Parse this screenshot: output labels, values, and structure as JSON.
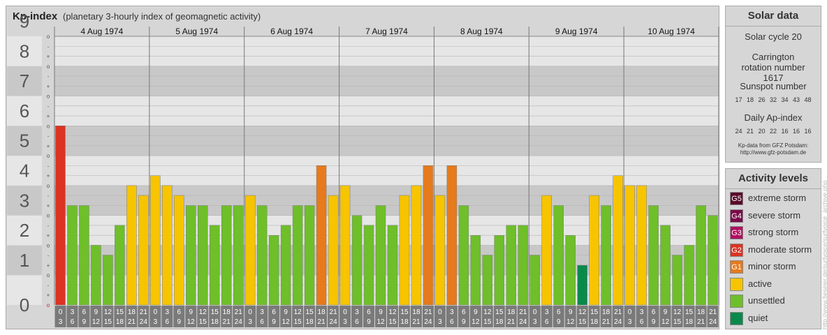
{
  "title": {
    "main": "Kp-index",
    "sub": "(planetary 3-hourly index of geomagnetic activity)"
  },
  "chart_data": {
    "type": "bar",
    "days": [
      "4 Aug 1974",
      "5 Aug 1974",
      "6 Aug 1974",
      "7 Aug 1974",
      "8 Aug 1974",
      "9 Aug 1974",
      "10 Aug 1974"
    ],
    "interval_labels": [
      [
        "0",
        "3"
      ],
      [
        "3",
        "6"
      ],
      [
        "6",
        "9"
      ],
      [
        "9",
        "12"
      ],
      [
        "12",
        "15"
      ],
      [
        "15",
        "18"
      ],
      [
        "18",
        "21"
      ],
      [
        "21",
        "24"
      ]
    ],
    "y_tick_labels": [
      "0",
      "1",
      "2",
      "3",
      "4",
      "5",
      "6",
      "7",
      "8",
      "9"
    ],
    "y_sub_labels": [
      "o",
      "+",
      "-"
    ],
    "ylim": [
      0,
      9
    ],
    "values": [
      [
        6.0,
        3.33,
        3.33,
        2.0,
        1.67,
        2.67,
        4.0,
        3.67
      ],
      [
        4.33,
        4.0,
        3.67,
        3.33,
        3.33,
        2.67,
        3.33,
        3.33
      ],
      [
        3.67,
        3.33,
        2.33,
        2.67,
        3.33,
        3.33,
        4.67,
        3.67
      ],
      [
        4.0,
        3.0,
        2.67,
        3.33,
        2.67,
        3.67,
        4.0,
        4.67
      ],
      [
        3.67,
        4.67,
        3.33,
        2.33,
        1.67,
        2.33,
        2.67,
        2.67
      ],
      [
        1.67,
        3.67,
        3.33,
        2.33,
        1.33,
        3.67,
        3.33,
        4.33
      ],
      [
        4.0,
        4.0,
        3.33,
        2.67,
        1.67,
        2.0,
        3.33,
        3.0
      ]
    ],
    "colors": {
      "G5": "#5a0a2a",
      "G4": "#7a0a4a",
      "G3": "#b01060",
      "G2": "#dd3322",
      "G1": "#e67a1c",
      "active": "#f7c400",
      "unsettled": "#6ebf2a",
      "quiet": "#0a8a4a"
    },
    "grid": true
  },
  "solar": {
    "heading": "Solar data",
    "cycle": "Solar cycle 20",
    "carrington": "Carrington rotation number 1617",
    "sunspot_title": "Sunspot number",
    "sunspot_values": "17 18 26 32 34 43 48",
    "ap_title": "Daily Ap-index",
    "ap_values": "24 21 20 22 16 16 16",
    "source_line1": "Kp-data from GFZ Potsdam:",
    "source_line2": "http://www.gfz-potsdam.de"
  },
  "levels": {
    "heading": "Activity levels",
    "items": [
      {
        "code": "G5",
        "label": "extreme storm",
        "color": "#5a0a2a"
      },
      {
        "code": "G4",
        "label": "severe storm",
        "color": "#7a0a4a"
      },
      {
        "code": "G3",
        "label": "strong storm",
        "color": "#b01060"
      },
      {
        "code": "G2",
        "label": "moderate storm",
        "color": "#dd3322"
      },
      {
        "code": "G1",
        "label": "minor storm",
        "color": "#e67a1c"
      },
      {
        "code": "",
        "label": "active",
        "color": "#f7c400"
      },
      {
        "code": "",
        "label": "unsettled",
        "color": "#6ebf2a"
      },
      {
        "code": "",
        "label": "quiet",
        "color": "#0a8a4a"
      }
    ]
  },
  "url_vertical": "http://www.fieseler.de/surfvoice/surfvoice_archive.php"
}
